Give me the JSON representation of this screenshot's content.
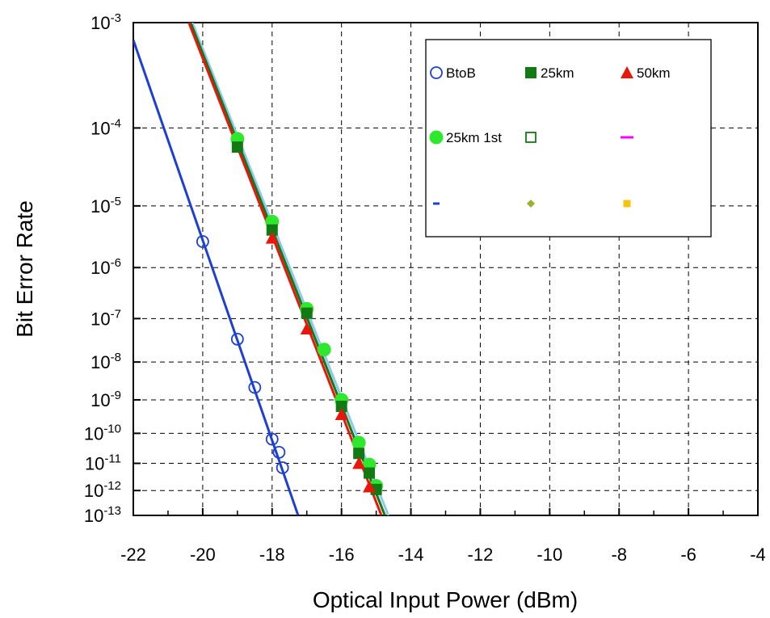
{
  "chart_data": {
    "type": "scatter",
    "xlabel": "Optical Input Power (dBm)",
    "ylabel": "Bit Error Rate",
    "xlim": [
      -22,
      -4
    ],
    "x_ticks": [
      "-22",
      "-20",
      "-18",
      "-16",
      "-14",
      "-12",
      "-10",
      "-8",
      "-6",
      "-4"
    ],
    "y_scale": "probit",
    "ylim": [
      1e-13,
      0.001
    ],
    "y_ticks": [
      {
        "value": 0.001,
        "base": "10",
        "exp": "-3"
      },
      {
        "value": 0.0001,
        "base": "10",
        "exp": "-4"
      },
      {
        "value": 1e-05,
        "base": "10",
        "exp": "-5"
      },
      {
        "value": 1e-06,
        "base": "10",
        "exp": "-6"
      },
      {
        "value": 1e-07,
        "base": "10",
        "exp": "-7"
      },
      {
        "value": 1e-08,
        "base": "10",
        "exp": "-8"
      },
      {
        "value": 1e-09,
        "base": "10",
        "exp": "-9"
      },
      {
        "value": 1e-10,
        "base": "10",
        "exp": "-10"
      },
      {
        "value": 1e-11,
        "base": "10",
        "exp": "-11"
      },
      {
        "value": 1e-12,
        "base": "10",
        "exp": "-12"
      },
      {
        "value": 1e-13,
        "base": "10",
        "exp": "-13"
      }
    ],
    "grid": true,
    "legend_position": "top-right",
    "series": [
      {
        "name": "BtoB",
        "marker": "circle-open",
        "color": "#1c3fd6",
        "points": [
          [
            -20.0,
            2.8e-06
          ],
          [
            -19.0,
            3.5e-08
          ],
          [
            -18.5,
            2.2e-09
          ],
          [
            -18.0,
            6.5e-11
          ],
          [
            -17.8,
            2.4e-11
          ],
          [
            -17.7,
            7e-12
          ]
        ]
      },
      {
        "name": "25km",
        "marker": "square-filled",
        "color": "#127a12",
        "points": [
          [
            -19.0,
            6e-05
          ],
          [
            -18.0,
            4.3e-06
          ],
          [
            -17.0,
            1.3e-07
          ],
          [
            -16.0,
            6.5e-10
          ],
          [
            -15.5,
            2.2e-11
          ],
          [
            -15.2,
            4.5e-12
          ],
          [
            -15.0,
            1.1e-12
          ]
        ]
      },
      {
        "name": "50km",
        "marker": "triangle-filled",
        "color": "#e8160c",
        "points": [
          [
            -18.0,
            3.2e-06
          ],
          [
            -17.0,
            6e-08
          ],
          [
            -16.0,
            3.8e-10
          ],
          [
            -15.5,
            1e-11
          ],
          [
            -15.2,
            1.4e-12
          ]
        ]
      },
      {
        "name": "25km 1st",
        "marker": "circle-filled",
        "color": "#2ee82e",
        "points": [
          [
            -19.0,
            7.5e-05
          ],
          [
            -18.0,
            5.8e-06
          ],
          [
            -17.0,
            1.6e-07
          ],
          [
            -16.5,
            2e-08
          ],
          [
            -16.0,
            1e-09
          ],
          [
            -15.5,
            5e-11
          ],
          [
            -15.2,
            9e-12
          ],
          [
            -15.0,
            1.5e-12
          ]
        ]
      },
      {
        "name": "",
        "marker": "square-open",
        "color": "#127a12",
        "points": []
      },
      {
        "name": "",
        "marker": "dash",
        "color": "#ff00ff",
        "points": []
      },
      {
        "name": "",
        "marker": "dash",
        "color": "#1c3fd6",
        "points": []
      },
      {
        "name": "",
        "marker": "diamond",
        "color": "#9ab22e",
        "points": []
      },
      {
        "name": "",
        "marker": "square-small",
        "color": "#f5c40f",
        "points": []
      }
    ],
    "fit_lines": [
      {
        "color": "#1c3fd6",
        "from": [
          -22.0,
          0.00072
        ],
        "to": [
          -17.25,
          1e-13
        ]
      },
      {
        "color": "#8ec8ee",
        "from": [
          -20.3,
          0.001
        ],
        "to": [
          -14.65,
          1e-13
        ]
      },
      {
        "color": "#127a12",
        "from": [
          -20.35,
          0.001
        ],
        "to": [
          -14.75,
          1e-13
        ]
      },
      {
        "color": "#e8160c",
        "from": [
          -20.4,
          0.001
        ],
        "to": [
          -14.85,
          1e-13
        ]
      }
    ]
  },
  "legend": {
    "entries": [
      {
        "label": "BtoB",
        "marker": "circle-open",
        "color": "#1c3fd6"
      },
      {
        "label": "25km",
        "marker": "square-filled",
        "color": "#127a12"
      },
      {
        "label": "50km",
        "marker": "triangle-filled",
        "color": "#e8160c"
      },
      {
        "label": "25km 1st",
        "marker": "circle-filled",
        "color": "#2ee82e"
      },
      {
        "label": "",
        "marker": "square-open",
        "color": "#127a12"
      },
      {
        "label": "",
        "marker": "dash",
        "color": "#ff00ff"
      },
      {
        "label": "",
        "marker": "dash-small",
        "color": "#1c3fd6"
      },
      {
        "label": "",
        "marker": "diamond",
        "color": "#9ab22e"
      },
      {
        "label": "",
        "marker": "square-small",
        "color": "#f5c40f"
      }
    ]
  }
}
